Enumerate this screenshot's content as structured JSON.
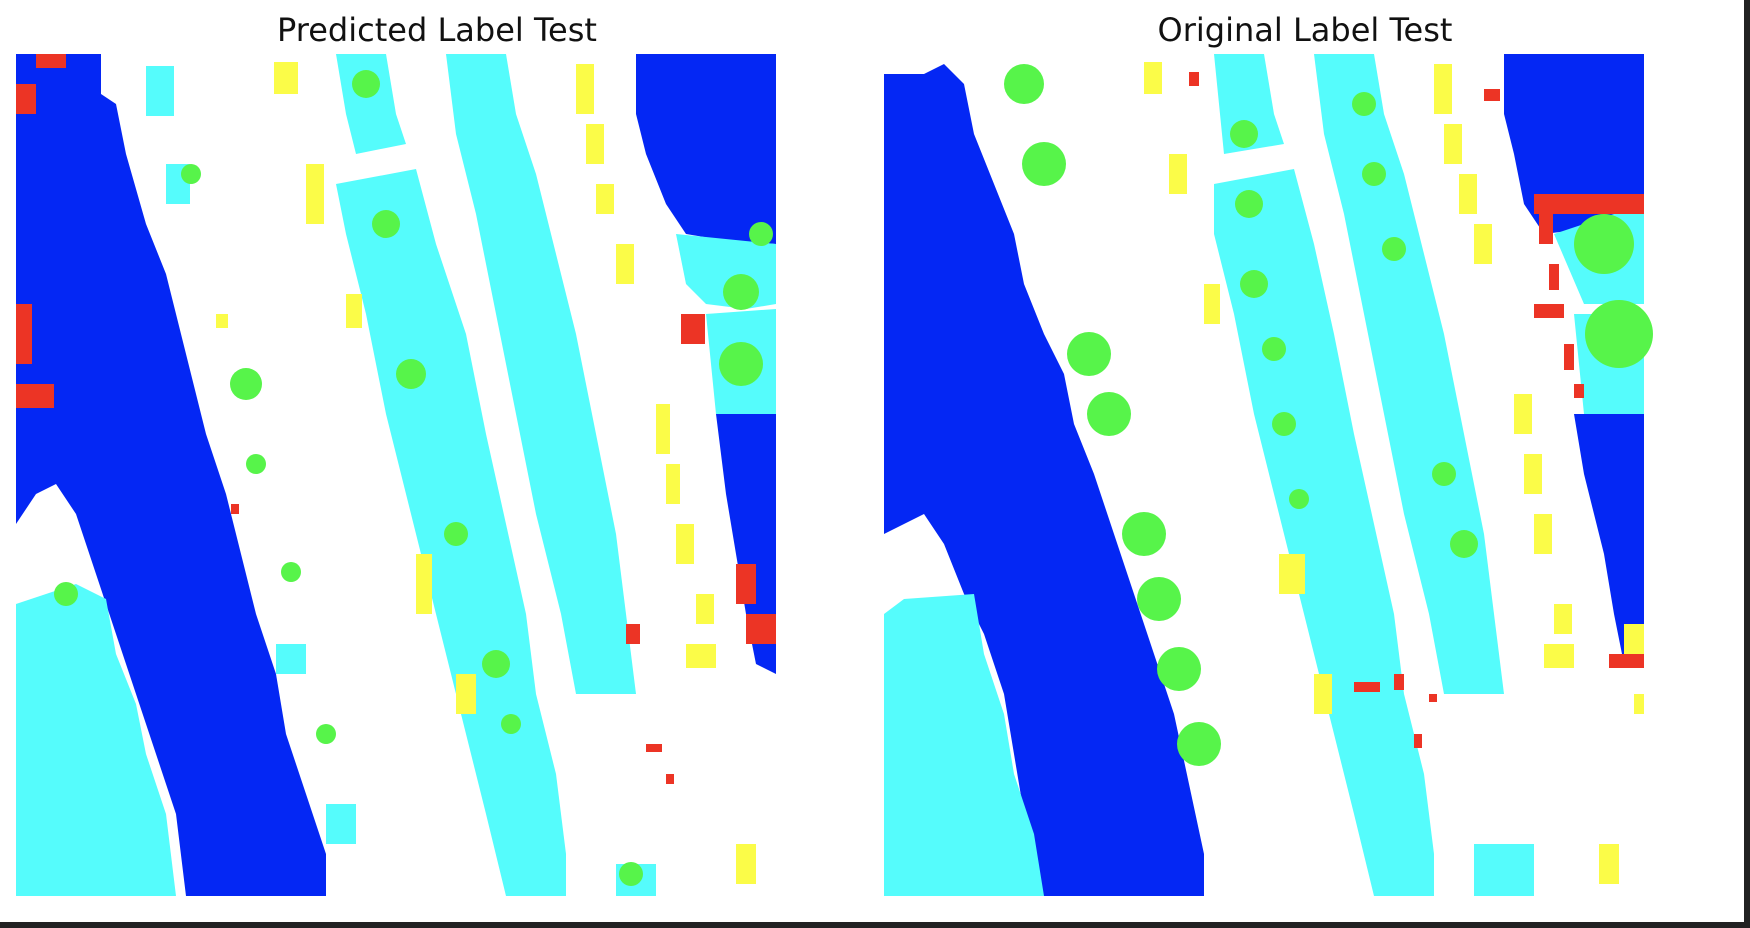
{
  "panels": [
    {
      "id": "pred",
      "title": "Predicted Label Test"
    },
    {
      "id": "orig",
      "title": "Original Label Test"
    }
  ],
  "palette": {
    "background": "#ffffff",
    "blue": "#0427f4",
    "cyan": "#55fcfc",
    "green": "#57f44a",
    "yellow": "#fbfc48",
    "red": "#ec3425"
  }
}
